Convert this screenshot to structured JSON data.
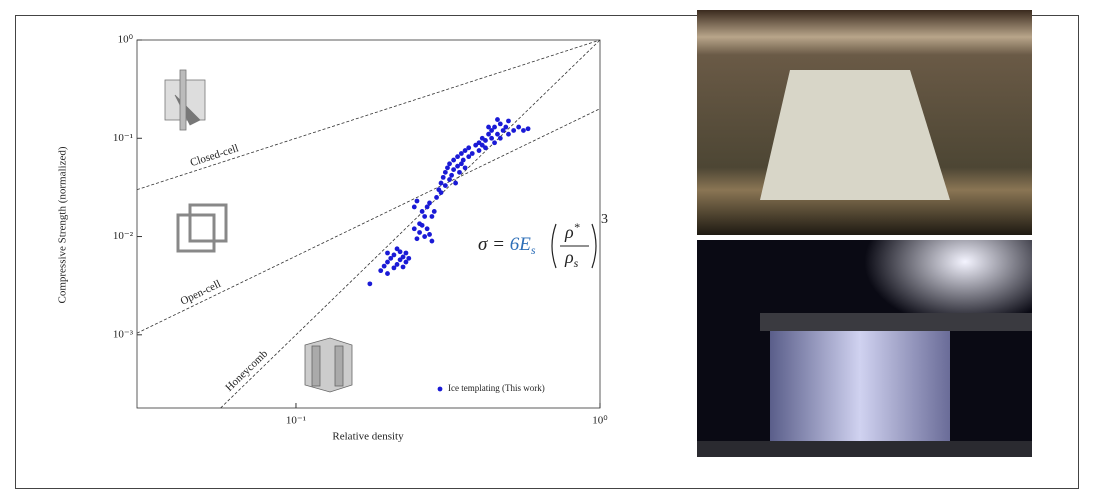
{
  "chart_data": {
    "type": "scatter",
    "x_label": "Relative density",
    "y_label": "Compressive Strength (normalized)",
    "log_x": true,
    "log_y": true,
    "xlim": [
      0.03,
      1
    ],
    "ylim": [
      0.00018,
      1
    ],
    "xticks": [
      {
        "value": 0.1,
        "label": "10⁻¹"
      },
      {
        "value": 1,
        "label": "10⁰"
      }
    ],
    "yticks": [
      {
        "value": 0.001,
        "label": "10⁻³"
      },
      {
        "value": 0.01,
        "label": "10⁻²"
      },
      {
        "value": 0.1,
        "label": "10⁻¹"
      },
      {
        "value": 1,
        "label": "10⁰"
      }
    ],
    "legend": "lower right",
    "series": [
      {
        "name": "Ice templating (This work)",
        "color": "#1a1ad6",
        "x": [
          0.175,
          0.19,
          0.195,
          0.2,
          0.2,
          0.205,
          0.21,
          0.21,
          0.215,
          0.22,
          0.22,
          0.225,
          0.23,
          0.23,
          0.235,
          0.2,
          0.215,
          0.225,
          0.245,
          0.25,
          0.255,
          0.26,
          0.265,
          0.27,
          0.275,
          0.28,
          0.255,
          0.26,
          0.265,
          0.27,
          0.275,
          0.28,
          0.285,
          0.245,
          0.25,
          0.29,
          0.295,
          0.3,
          0.3,
          0.305,
          0.31,
          0.31,
          0.315,
          0.32,
          0.32,
          0.325,
          0.33,
          0.33,
          0.335,
          0.34,
          0.34,
          0.345,
          0.35,
          0.35,
          0.355,
          0.36,
          0.36,
          0.37,
          0.37,
          0.38,
          0.39,
          0.4,
          0.4,
          0.41,
          0.42,
          0.42,
          0.43,
          0.44,
          0.44,
          0.45,
          0.45,
          0.46,
          0.47,
          0.47,
          0.48,
          0.49,
          0.5,
          0.5,
          0.52,
          0.54,
          0.56,
          0.58,
          0.46,
          0.43,
          0.41
        ],
        "values": [
          0.0033,
          0.0045,
          0.005,
          0.0055,
          0.0042,
          0.006,
          0.0048,
          0.0065,
          0.0052,
          0.0058,
          0.007,
          0.0062,
          0.0055,
          0.0068,
          0.006,
          0.0068,
          0.0075,
          0.0049,
          0.012,
          0.0095,
          0.011,
          0.013,
          0.01,
          0.012,
          0.0105,
          0.009,
          0.0135,
          0.018,
          0.016,
          0.02,
          0.022,
          0.016,
          0.018,
          0.02,
          0.023,
          0.025,
          0.03,
          0.028,
          0.035,
          0.04,
          0.033,
          0.045,
          0.05,
          0.038,
          0.055,
          0.042,
          0.06,
          0.048,
          0.035,
          0.052,
          0.065,
          0.045,
          0.07,
          0.055,
          0.06,
          0.075,
          0.05,
          0.065,
          0.08,
          0.07,
          0.085,
          0.09,
          0.075,
          0.1,
          0.095,
          0.08,
          0.11,
          0.1,
          0.12,
          0.09,
          0.13,
          0.11,
          0.14,
          0.1,
          0.12,
          0.13,
          0.11,
          0.15,
          0.12,
          0.13,
          0.12,
          0.125,
          0.155,
          0.13,
          0.085
        ]
      }
    ],
    "reference_lines": [
      {
        "name": "Closed-cell",
        "x": [
          0.03,
          1
        ],
        "values": [
          0.03,
          1
        ]
      },
      {
        "name": "Open-cell",
        "x": [
          0.03,
          1
        ],
        "values": [
          0.00104,
          0.2
        ]
      },
      {
        "name": "Honeycomb",
        "x": [
          0.0565,
          1
        ],
        "values": [
          0.00018,
          1
        ]
      }
    ],
    "annotation": {
      "lhs": "σ = ",
      "coef": "6E",
      "coef_sub": "s",
      "num": "ρ",
      "num_sup": "*",
      "den": "ρ",
      "den_sub": "s",
      "exp": "3"
    }
  }
}
